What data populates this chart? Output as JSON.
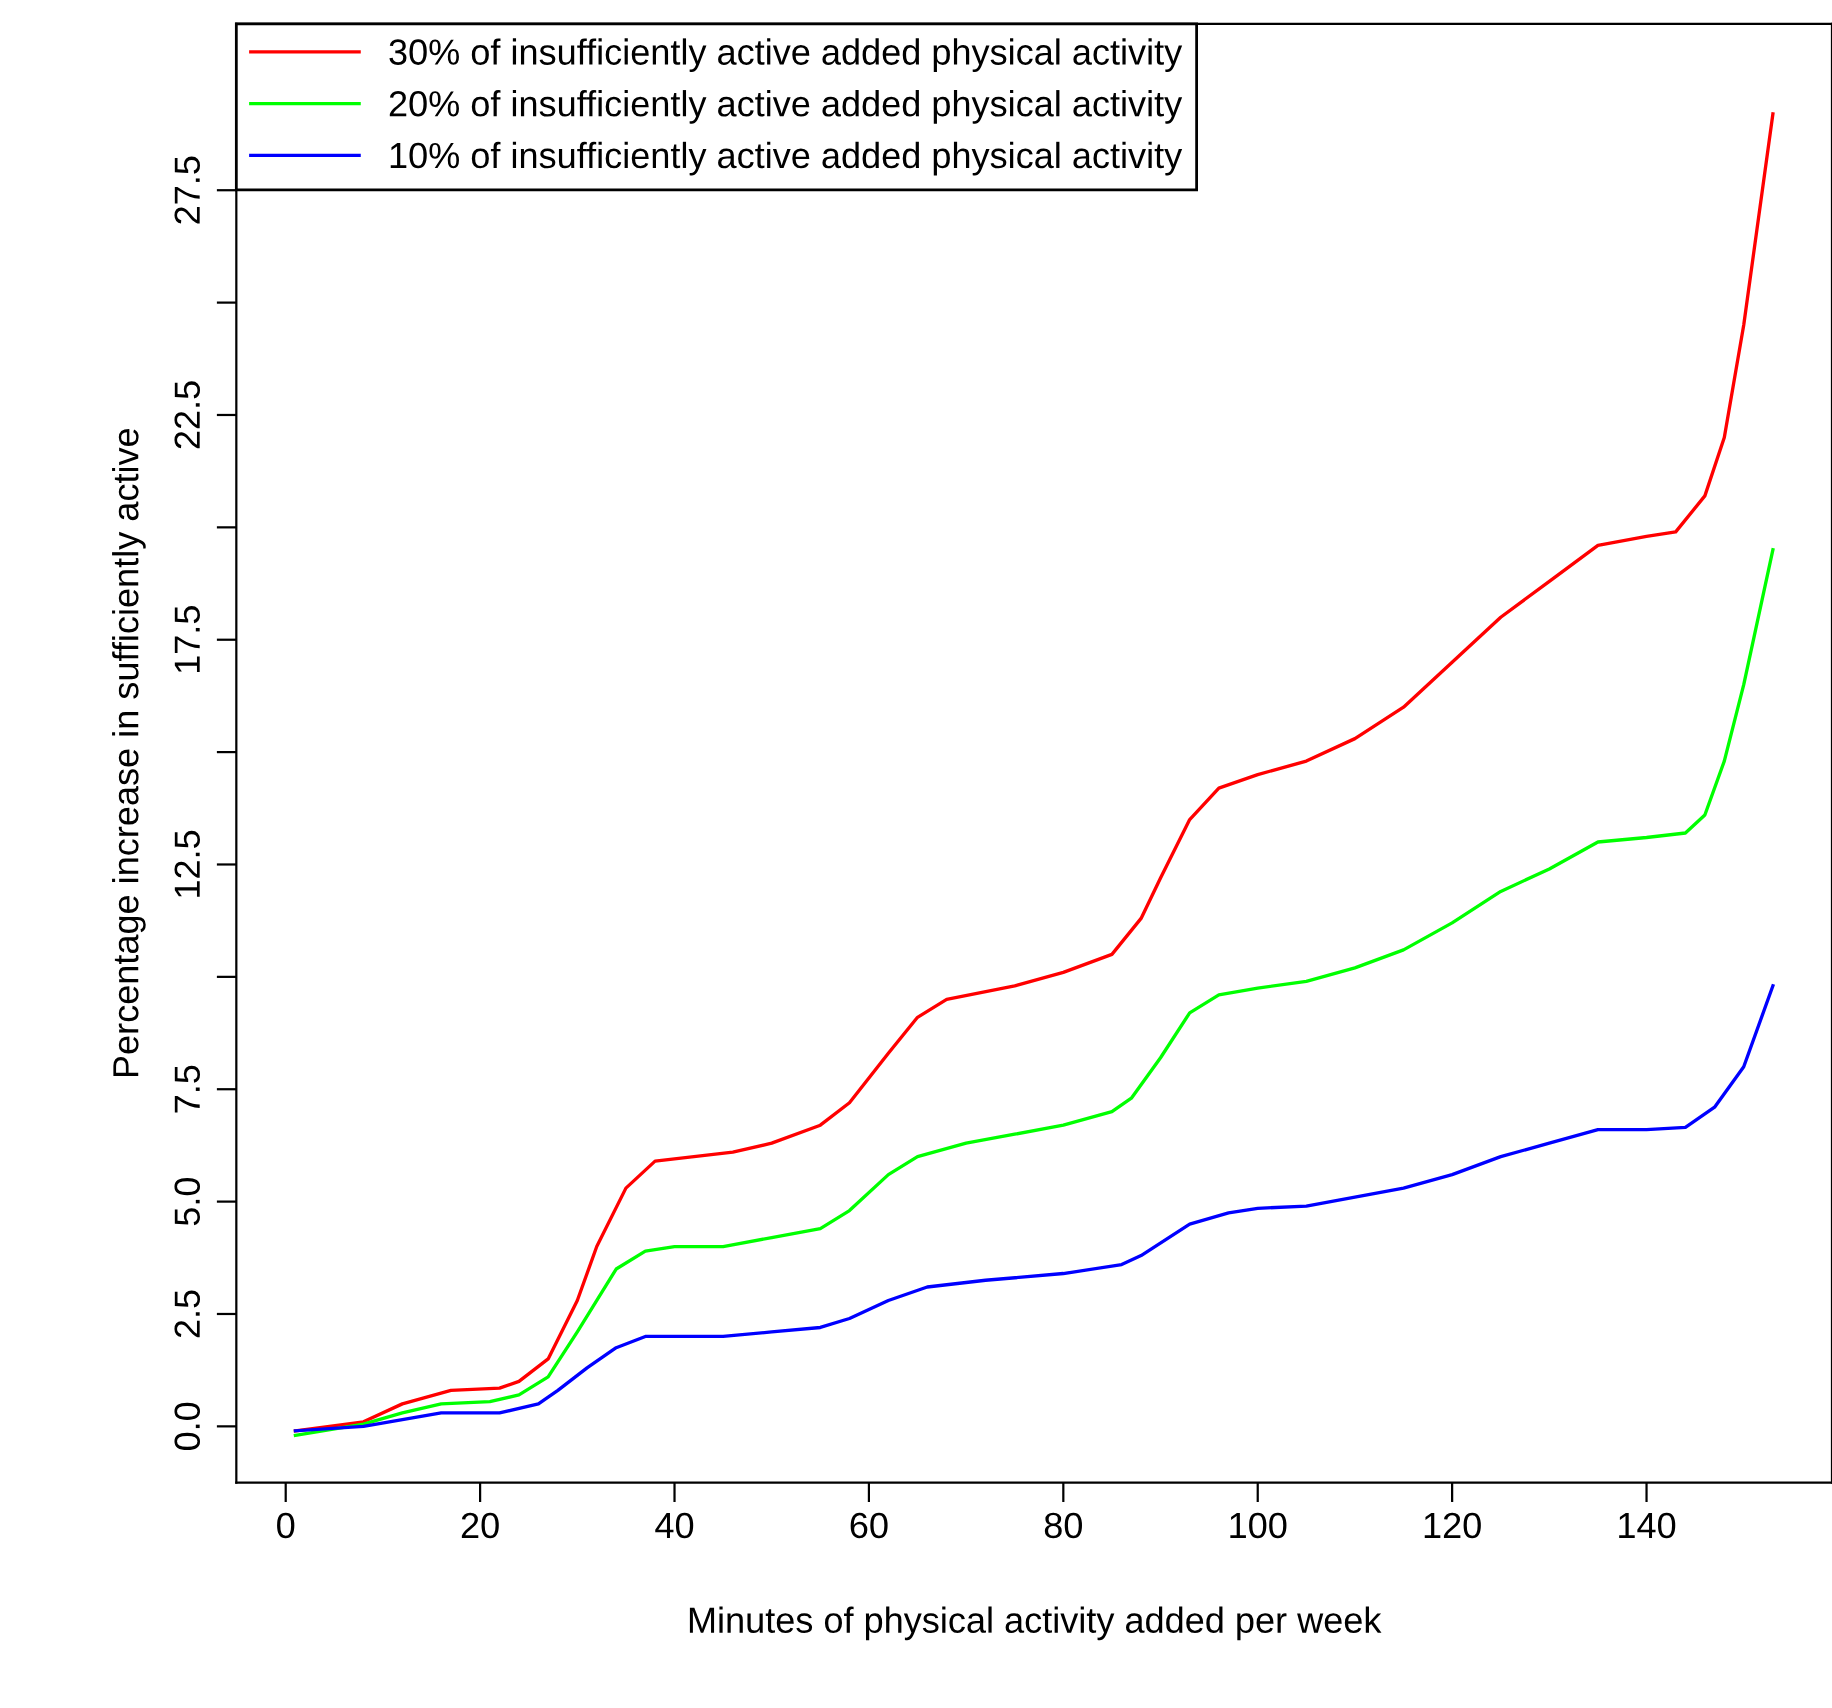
{
  "chart_data": {
    "type": "line",
    "xlabel": "Minutes of physical activity added per week",
    "ylabel": "Percentage increase in sufficiently active",
    "xlim": [
      -5.08,
      159.08
    ],
    "ylim": [
      -1.25,
      31.2
    ],
    "xticks": [
      0,
      20,
      40,
      60,
      80,
      100,
      120,
      140
    ],
    "yticks": [
      {
        "value": 0,
        "label": "0.0"
      },
      2.5,
      {
        "value": 5,
        "label": "5.0"
      },
      7.5,
      {
        "value": 10,
        "label": null
      },
      12.5,
      {
        "value": 15,
        "label": null
      },
      17.5,
      {
        "value": 20,
        "label": null
      },
      22.5,
      {
        "value": 25,
        "label": null
      },
      27.5
    ],
    "legend": "top left",
    "grid": false,
    "series": [
      {
        "name": "30% of insufficiently active added physical activity",
        "color": "#ff0000",
        "x": [
          1,
          8,
          12,
          17,
          22,
          24,
          27,
          30,
          32,
          35,
          38,
          42,
          46,
          50,
          55,
          58,
          62,
          65,
          68,
          75,
          80,
          85,
          88,
          90,
          93,
          96,
          100,
          105,
          110,
          115,
          120,
          125,
          130,
          135,
          140,
          143,
          146,
          148,
          150,
          153
        ],
        "values": [
          -0.1,
          0.1,
          0.5,
          0.8,
          0.85,
          1.0,
          1.5,
          2.8,
          4.0,
          5.3,
          5.9,
          6.0,
          6.1,
          6.3,
          6.7,
          7.2,
          8.3,
          9.1,
          9.5,
          9.8,
          10.1,
          10.5,
          11.3,
          12.2,
          13.5,
          14.2,
          14.5,
          14.8,
          15.3,
          16.0,
          17.0,
          18.0,
          18.8,
          19.6,
          19.8,
          19.9,
          20.7,
          22.0,
          24.5,
          29.2
        ]
      },
      {
        "name": "20% of insufficiently active added physical activity",
        "color": "#00ff00",
        "x": [
          1,
          8,
          12,
          16,
          21,
          24,
          27,
          30,
          34,
          37,
          40,
          45,
          50,
          55,
          58,
          62,
          65,
          70,
          75,
          80,
          85,
          87,
          90,
          93,
          96,
          100,
          105,
          110,
          115,
          120,
          125,
          130,
          135,
          140,
          144,
          146,
          148,
          150,
          153
        ],
        "values": [
          -0.2,
          0.05,
          0.3,
          0.5,
          0.55,
          0.7,
          1.1,
          2.1,
          3.5,
          3.9,
          4.0,
          4.0,
          4.2,
          4.4,
          4.8,
          5.6,
          6.0,
          6.3,
          6.5,
          6.7,
          7.0,
          7.3,
          8.2,
          9.2,
          9.6,
          9.75,
          9.9,
          10.2,
          10.6,
          11.2,
          11.9,
          12.4,
          13.0,
          13.1,
          13.2,
          13.6,
          14.8,
          16.5,
          19.5
        ]
      },
      {
        "name": "10% of insufficiently active added physical activity",
        "color": "#0000ff",
        "x": [
          1,
          8,
          12,
          16,
          22,
          26,
          28,
          31,
          34,
          37,
          45,
          50,
          55,
          58,
          62,
          66,
          72,
          80,
          86,
          88,
          93,
          97,
          100,
          105,
          110,
          115,
          120,
          125,
          130,
          135,
          140,
          144,
          147,
          150,
          153
        ],
        "values": [
          -0.1,
          0.0,
          0.15,
          0.3,
          0.3,
          0.5,
          0.8,
          1.3,
          1.75,
          2.0,
          2.0,
          2.1,
          2.2,
          2.4,
          2.8,
          3.1,
          3.25,
          3.4,
          3.6,
          3.8,
          4.5,
          4.75,
          4.85,
          4.9,
          5.1,
          5.3,
          5.6,
          6.0,
          6.3,
          6.6,
          6.6,
          6.65,
          7.1,
          8.0,
          9.8
        ]
      }
    ]
  }
}
